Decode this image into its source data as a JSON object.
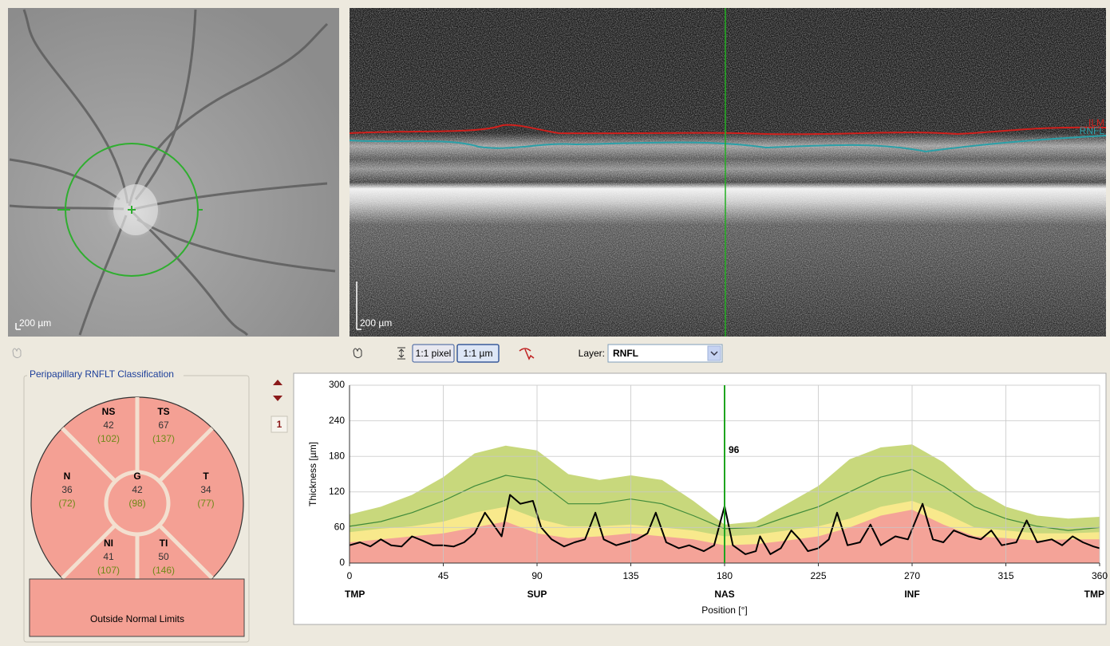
{
  "fundus": {
    "scale_label": "200 µm"
  },
  "oct": {
    "scale_label": "200 µm",
    "layer_labels": [
      "ILM",
      "RNFL"
    ]
  },
  "toolbar": {
    "pixel_button": "1:1 pixel",
    "micron_button": "1:1 µm",
    "layer_label": "Layer:",
    "layer_value": "RNFL"
  },
  "page_index": 1,
  "classification": {
    "title": "Peripapillary RNFLT Classification",
    "sectors": [
      {
        "name": "NS",
        "measured": 42,
        "reference": "(102)"
      },
      {
        "name": "TS",
        "measured": 67,
        "reference": "(137)"
      },
      {
        "name": "N",
        "measured": 36,
        "reference": "(72)"
      },
      {
        "name": "G",
        "measured": 42,
        "reference": "(98)"
      },
      {
        "name": "T",
        "measured": 34,
        "reference": "(77)"
      },
      {
        "name": "NI",
        "measured": 41,
        "reference": "(107)"
      },
      {
        "name": "TI",
        "measured": 50,
        "reference": "(146)"
      }
    ],
    "result": "Outside Normal Limits"
  },
  "chart_data": {
    "type": "line",
    "y_label": "Thickness [µm]",
    "x_label": "Position [°]",
    "xlim": [
      0,
      360
    ],
    "ylim": [
      0,
      300
    ],
    "xticks": [
      0,
      45,
      90,
      135,
      180,
      225,
      270,
      315,
      360
    ],
    "yticks": [
      0,
      60,
      120,
      180,
      240,
      300
    ],
    "grid": true,
    "x_region_labels": [
      {
        "value": 0,
        "label": "TMP"
      },
      {
        "value": 90,
        "label": "SUP"
      },
      {
        "value": 180,
        "label": "NAS"
      },
      {
        "value": 270,
        "label": "INF"
      },
      {
        "value": 360,
        "label": "TMP"
      }
    ],
    "x": [
      0,
      15,
      30,
      45,
      60,
      75,
      90,
      105,
      120,
      135,
      150,
      165,
      180,
      195,
      210,
      225,
      240,
      255,
      270,
      285,
      300,
      315,
      330,
      345,
      360
    ],
    "series": [
      {
        "color": "#c8d87c",
        "fill": true,
        "values": [
          82,
          95,
          115,
          145,
          185,
          198,
          190,
          150,
          140,
          148,
          140,
          105,
          65,
          70,
          100,
          130,
          175,
          195,
          200,
          170,
          125,
          95,
          80,
          75,
          78
        ]
      },
      {
        "color": "#f8e98c",
        "fill": true,
        "values": [
          52,
          58,
          62,
          70,
          85,
          95,
          75,
          62,
          62,
          65,
          60,
          55,
          45,
          48,
          55,
          62,
          75,
          95,
          105,
          85,
          60,
          55,
          50,
          50,
          52
        ]
      },
      {
        "color": "#f4a398",
        "fill": true,
        "values": [
          35,
          40,
          45,
          50,
          60,
          70,
          50,
          42,
          45,
          50,
          45,
          40,
          30,
          32,
          38,
          45,
          60,
          80,
          90,
          65,
          45,
          42,
          38,
          40,
          40
        ]
      },
      {
        "color": "#3f8a3a",
        "fill": false,
        "values": [
          62,
          70,
          85,
          105,
          130,
          148,
          140,
          100,
          100,
          108,
          100,
          80,
          58,
          60,
          78,
          95,
          120,
          145,
          158,
          130,
          95,
          75,
          62,
          55,
          60
        ]
      },
      {
        "color": "#000000",
        "fill": false,
        "x": [
          0,
          5,
          10,
          15,
          20,
          25,
          30,
          35,
          40,
          45,
          50,
          55,
          60,
          65,
          70,
          73,
          77,
          82,
          88,
          92,
          97,
          103,
          108,
          113,
          118,
          122,
          128,
          133,
          138,
          143,
          147,
          152,
          158,
          163,
          170,
          175,
          180,
          184,
          190,
          195,
          197,
          202,
          207,
          212,
          216,
          220,
          225,
          230,
          234,
          239,
          245,
          250,
          255,
          262,
          268,
          275,
          280,
          285,
          290,
          297,
          303,
          308,
          313,
          320,
          325,
          330,
          337,
          342,
          347,
          352,
          357,
          360
        ],
        "values": [
          30,
          35,
          28,
          40,
          30,
          28,
          45,
          38,
          30,
          30,
          28,
          35,
          50,
          85,
          60,
          45,
          115,
          100,
          105,
          60,
          40,
          28,
          35,
          40,
          85,
          40,
          30,
          35,
          40,
          50,
          85,
          35,
          25,
          30,
          20,
          30,
          96,
          30,
          15,
          20,
          45,
          15,
          25,
          55,
          40,
          20,
          25,
          40,
          85,
          30,
          35,
          65,
          30,
          45,
          40,
          100,
          40,
          35,
          55,
          45,
          40,
          55,
          30,
          35,
          72,
          35,
          40,
          30,
          45,
          35,
          28,
          25
        ]
      }
    ],
    "cursor": {
      "x": 180,
      "value": 96,
      "color": "#1fa51f"
    }
  }
}
